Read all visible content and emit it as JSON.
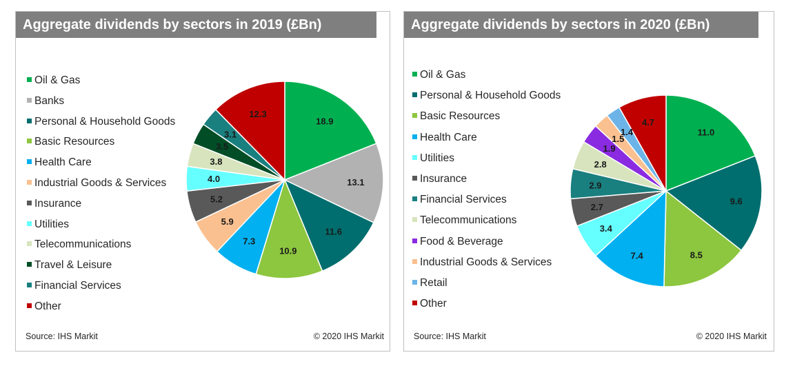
{
  "charts": [
    {
      "title": "Aggregate dividends by sectors in 2019 (£Bn)",
      "source": "Source: IHS Markit",
      "copyright": "© 2020 IHS Markit"
    },
    {
      "title": "Aggregate dividends by sectors in 2020 (£Bn)",
      "source": "Source: IHS Markit",
      "copyright": "© 2020 IHS Markit"
    }
  ],
  "chart_data": [
    {
      "type": "pie",
      "title": "Aggregate dividends by sectors in 2019 (£Bn)",
      "legend_position": "left",
      "slices": [
        {
          "label": "Oil & Gas",
          "value": 18.9,
          "value_label": "18.9",
          "color": "#00b050"
        },
        {
          "label": "Banks",
          "value": 13.1,
          "value_label": "13.1",
          "color": "#b2b2b2"
        },
        {
          "label": "Personal & Household Goods",
          "value": 11.6,
          "value_label": "11.6",
          "color": "#006e6e"
        },
        {
          "label": "Basic Resources",
          "value": 10.9,
          "value_label": "10.9",
          "color": "#8dc63f"
        },
        {
          "label": "Health Care",
          "value": 7.3,
          "value_label": "7.3",
          "color": "#00b0f0"
        },
        {
          "label": "Industrial Goods & Services",
          "value": 5.9,
          "value_label": "5.9",
          "color": "#fac090"
        },
        {
          "label": "Insurance",
          "value": 5.2,
          "value_label": "5.2",
          "color": "#595959"
        },
        {
          "label": "Utilities",
          "value": 4.0,
          "value_label": "4.0",
          "color": "#66ffff"
        },
        {
          "label": "Telecommunications",
          "value": 3.8,
          "value_label": "3.8",
          "color": "#d7e4bd"
        },
        {
          "label": "Travel & Leisure",
          "value": 3.5,
          "value_label": "3.5",
          "color": "#004d26"
        },
        {
          "label": "Financial Services",
          "value": 3.1,
          "value_label": "3.1",
          "color": "#1a7f7f"
        },
        {
          "label": "Other",
          "value": 12.3,
          "value_label": "12.3",
          "color": "#c00000"
        }
      ]
    },
    {
      "type": "pie",
      "title": "Aggregate dividends by sectors in 2020 (£Bn)",
      "legend_position": "left",
      "slices": [
        {
          "label": "Oil & Gas",
          "value": 11.0,
          "value_label": "11.0",
          "color": "#00b050"
        },
        {
          "label": "Personal & Household Goods",
          "value": 9.6,
          "value_label": "9.6",
          "color": "#006e6e"
        },
        {
          "label": "Basic Resources",
          "value": 8.5,
          "value_label": "8.5",
          "color": "#8dc63f"
        },
        {
          "label": "Health Care",
          "value": 7.4,
          "value_label": "7.4",
          "color": "#00b0f0"
        },
        {
          "label": "Utilities",
          "value": 3.4,
          "value_label": "3.4",
          "color": "#66ffff"
        },
        {
          "label": "Insurance",
          "value": 2.7,
          "value_label": "2.7",
          "color": "#595959"
        },
        {
          "label": "Financial Services",
          "value": 2.9,
          "value_label": "2.9",
          "color": "#1a7f7f"
        },
        {
          "label": "Telecommunications",
          "value": 2.8,
          "value_label": "2.8",
          "color": "#d7e4bd"
        },
        {
          "label": "Food & Beverage",
          "value": 1.9,
          "value_label": "1.9",
          "color": "#8a2be2"
        },
        {
          "label": "Industrial Goods & Services",
          "value": 1.5,
          "value_label": "1.5",
          "color": "#fac090"
        },
        {
          "label": "Retail",
          "value": 1.4,
          "value_label": "1.4",
          "color": "#6cb4e8"
        },
        {
          "label": "Other",
          "value": 4.7,
          "value_label": "4.7",
          "color": "#c00000"
        }
      ]
    }
  ]
}
